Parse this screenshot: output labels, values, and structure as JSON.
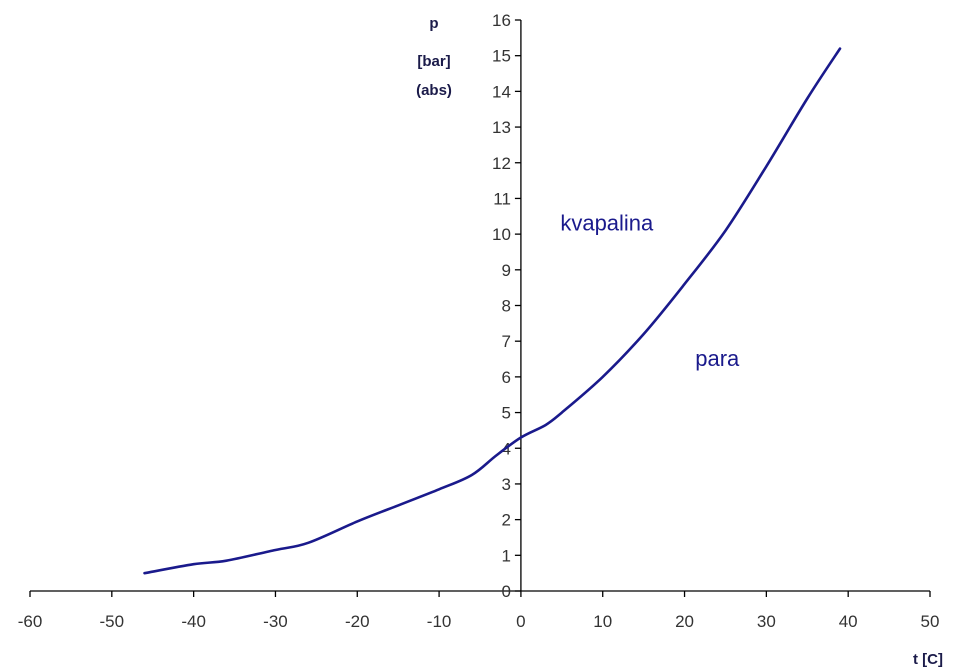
{
  "chart_data": {
    "type": "line",
    "xlabel": "t [C]",
    "ylabel": [
      "p",
      "[bar]",
      "(abs)"
    ],
    "xlim": [
      -60,
      50
    ],
    "ylim": [
      0,
      16
    ],
    "x_ticks": [
      -60,
      -50,
      -40,
      -30,
      -20,
      -10,
      0,
      10,
      20,
      30,
      40,
      50
    ],
    "y_ticks": [
      0,
      1,
      2,
      3,
      4,
      5,
      6,
      7,
      8,
      9,
      10,
      11,
      12,
      13,
      14,
      15,
      16
    ],
    "grid": false,
    "series": [
      {
        "color": "#1a1a8c",
        "x": [
          -46,
          -40,
          -36,
          -30,
          -26,
          -20,
          -15,
          -10,
          -6,
          -3,
          0,
          3,
          5,
          10,
          15,
          20,
          25,
          30,
          35,
          39
        ],
        "y": [
          0.5,
          0.75,
          0.85,
          1.15,
          1.35,
          1.95,
          2.4,
          2.85,
          3.25,
          3.8,
          4.3,
          4.65,
          5.0,
          6.0,
          7.2,
          8.6,
          10.1,
          11.9,
          13.8,
          15.2
        ]
      }
    ],
    "annotations": [
      {
        "text": "kvapalina",
        "x": 10.5,
        "y": 10.1
      },
      {
        "text": "para",
        "x": 24,
        "y": 6.3
      }
    ],
    "colors": {
      "axis": "#000000",
      "line": "#1a1a8c",
      "labels": "#1a1a8c"
    }
  }
}
